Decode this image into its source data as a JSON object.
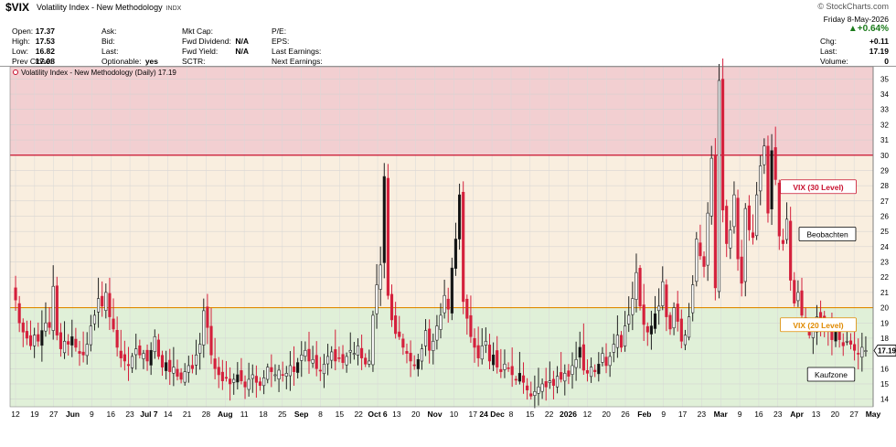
{
  "header": {
    "symbol": "$VIX",
    "name": "Volatility Index - New Methodology",
    "exchange": "INDX",
    "credit": "© StockCharts.com",
    "date_line": "Friday  8-May-2026",
    "change_pct": "▲+0.64%",
    "col1": [
      {
        "label": "Open:",
        "value": "17.37"
      },
      {
        "label": "High:",
        "value": "17.53"
      },
      {
        "label": "Low:",
        "value": "16.82"
      },
      {
        "label": "Prev Close:",
        "value": "17.08"
      }
    ],
    "col2": [
      {
        "label": "Ask:",
        "value": ""
      },
      {
        "label": "Bid:",
        "value": ""
      },
      {
        "label": "Last:",
        "value": ""
      },
      {
        "label": "Optionable:",
        "value": "yes"
      }
    ],
    "col3": [
      {
        "label": "Mkt Cap:",
        "value": ""
      },
      {
        "label": "Fwd Dividend:",
        "value": "N/A"
      },
      {
        "label": "Fwd Yield:",
        "value": "N/A"
      },
      {
        "label": "SCTR:",
        "value": ""
      }
    ],
    "col4": [
      {
        "label": "P/E:",
        "value": ""
      },
      {
        "label": "EPS:",
        "value": ""
      },
      {
        "label": "Last Earnings:",
        "value": ""
      },
      {
        "label": "Next Earnings:",
        "value": ""
      }
    ],
    "col5": [
      {
        "label": "Chg:",
        "value": "+0.11"
      },
      {
        "label": "Last:",
        "value": "17.19"
      },
      {
        "label": "Volume:",
        "value": "0"
      }
    ]
  },
  "chart_data": {
    "type": "candlestick",
    "legend": "Volatility Index - New Methodology (Daily) 17.19",
    "last_value": "17.19",
    "ylim": [
      13.5,
      35.8
    ],
    "y_ticks": [
      14,
      15,
      16,
      17,
      18,
      19,
      20,
      21,
      22,
      23,
      24,
      25,
      26,
      27,
      28,
      29,
      30,
      31,
      32,
      33,
      34,
      35
    ],
    "zones": [
      {
        "from": 30,
        "to": 35.8,
        "color": "#f2cfd1"
      },
      {
        "from": 20,
        "to": 30,
        "color": "#f9eedf"
      },
      {
        "from": 13.5,
        "to": 20,
        "color": "#e0f0d8"
      }
    ],
    "levels": [
      {
        "value": 30,
        "label": "VIX (30 Level)",
        "color": "#c8102e"
      },
      {
        "value": 20,
        "label": "VIX (20 Level)",
        "color": "#e08a00"
      }
    ],
    "notes": [
      {
        "text": "Beobachten",
        "value": 24.8
      },
      {
        "text": "Kaufzone",
        "value": 15.6
      }
    ],
    "x_ticks": [
      "12",
      "19",
      "27",
      "Jun",
      "9",
      "16",
      "23",
      "Jul 7",
      "14",
      "21",
      "28",
      "Aug",
      "11",
      "18",
      "25",
      "Sep",
      "8",
      "15",
      "22",
      "Oct 6",
      "13",
      "20",
      "Nov",
      "10",
      "17",
      "24 Dec",
      "8",
      "15",
      "22",
      "2026",
      "12",
      "20",
      "26",
      "Feb",
      "9",
      "17",
      "23",
      "Mar",
      "9",
      "16",
      "23",
      "Apr",
      "13",
      "20",
      "27",
      "May"
    ],
    "candle_colors": {
      "up": "#ffffff",
      "down": "#d4203c",
      "up_filled": "#111111"
    },
    "closes": [
      20.5,
      19.0,
      18.4,
      18.0,
      17.5,
      18.2,
      17.8,
      18.5,
      19.0,
      18.7,
      21.4,
      18.2,
      17.3,
      17.8,
      17.6,
      18.1,
      17.4,
      17.0,
      16.9,
      17.6,
      18.8,
      19.5,
      20.6,
      20.1,
      21.0,
      19.4,
      18.6,
      17.4,
      16.7,
      16.5,
      16.2,
      16.8,
      17.3,
      16.9,
      17.0,
      16.5,
      17.2,
      18.1,
      16.8,
      16.1,
      16.4,
      15.8,
      16.1,
      15.5,
      15.3,
      15.8,
      16.2,
      16.0,
      16.9,
      17.6,
      19.8,
      18.7,
      16.9,
      16.0,
      15.6,
      15.2,
      15.4,
      15.0,
      15.3,
      15.6,
      15.2,
      14.8,
      15.3,
      15.6,
      15.1,
      14.9,
      15.4,
      16.1,
      15.8,
      15.6,
      15.9,
      15.6,
      15.7,
      16.2,
      15.8,
      16.4,
      16.9,
      17.2,
      16.5,
      16.6,
      16.0,
      15.9,
      16.3,
      16.8,
      17.1,
      16.5,
      16.7,
      16.4,
      16.8,
      17.2,
      17.0,
      17.5,
      16.7,
      16.3,
      16.5,
      19.5,
      21.5,
      22.8,
      28.6,
      20.8,
      19.2,
      18.3,
      18.1,
      17.4,
      17.0,
      16.5,
      16.2,
      16.6,
      17.3,
      18.5,
      17.2,
      17.8,
      18.8,
      19.5,
      20.8,
      19.9,
      22.6,
      24.5,
      27.4,
      20.4,
      19.3,
      18.1,
      17.4,
      16.7,
      17.5,
      17.8,
      16.5,
      16.9,
      16.1,
      15.8,
      16.3,
      16.0,
      15.6,
      15.3,
      15.7,
      15.1,
      14.6,
      14.2,
      14.5,
      14.8,
      15.0,
      14.8,
      15.2,
      14.9,
      15.5,
      15.3,
      15.7,
      15.5,
      16.2,
      16.6,
      17.4,
      15.9,
      15.7,
      16.1,
      15.8,
      16.3,
      17.0,
      16.2,
      16.8,
      17.6,
      18.2,
      17.4,
      18.8,
      19.5,
      20.6,
      22.3,
      20.1,
      18.9,
      18.4,
      18.8,
      19.6,
      20.1,
      21.7,
      19.4,
      18.6,
      20.0,
      19.1,
      17.8,
      18.2,
      19.4,
      21.5,
      24.5,
      23.4,
      22.7,
      26.2,
      29.8,
      21.3,
      34.9,
      26.4,
      24.2,
      25.1,
      27.4,
      23.2,
      21.6,
      26.5,
      25.1,
      24.6,
      27.4,
      29.3,
      30.6,
      26.2,
      30.3,
      28.4,
      24.7,
      24.2,
      25.8,
      21.8,
      20.3,
      21.0,
      19.5,
      18.9,
      18.2,
      18.6,
      19.4,
      19.2,
      18.9,
      18.5,
      17.9,
      18.4,
      17.9,
      17.5,
      17.8,
      17.6,
      17.2,
      17.0,
      17.4,
      17.19
    ]
  }
}
